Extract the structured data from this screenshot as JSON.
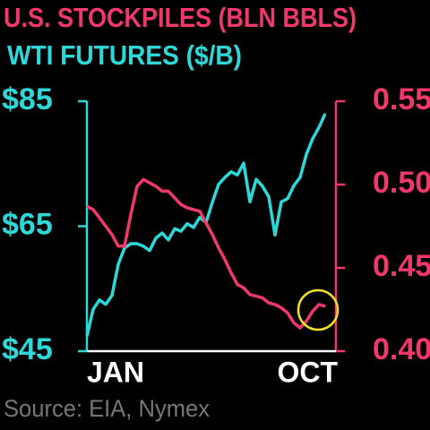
{
  "chart_data": {
    "type": "line",
    "title": "U.S. STOCKPILES (BLN BBLS)",
    "subtitle": "WTI FUTURES ($/B)",
    "source": "Source: EIA, Nymex",
    "categories": [
      "JAN",
      null,
      null,
      null,
      null,
      null,
      null,
      null,
      null,
      null,
      null,
      null,
      null,
      null,
      null,
      null,
      null,
      null,
      null,
      null,
      null,
      null,
      null,
      null,
      null,
      null,
      null,
      null,
      null,
      null,
      null,
      null,
      null,
      null,
      null,
      null,
      null,
      null,
      "OCT"
    ],
    "series": [
      {
        "name": "WTI FUTURES ($/B)",
        "color": "#2fd8d8",
        "axis": "y",
        "values": [
          47.4,
          51.7,
          53.2,
          52.5,
          53.9,
          58.9,
          61.5,
          62.2,
          62.2,
          61.8,
          61.1,
          63.1,
          63.9,
          62.8,
          64.6,
          64.2,
          65.4,
          64.8,
          66.4,
          65.6,
          68.8,
          71.7,
          72.8,
          73.7,
          73.2,
          75.1,
          68.9,
          72.5,
          71.4,
          69.7,
          63.6,
          68.9,
          69.4,
          71.5,
          72.8,
          76.5,
          79.0,
          80.8,
          83.0
        ]
      },
      {
        "name": "U.S. STOCKPILES (BLN BBLS)",
        "color": "#f0386b",
        "axis": "y2",
        "values": [
          0.487,
          0.485,
          0.48,
          0.475,
          0.47,
          0.463,
          0.463,
          0.482,
          0.499,
          0.503,
          0.501,
          0.499,
          0.496,
          0.496,
          0.492,
          0.488,
          0.486,
          0.485,
          0.484,
          0.477,
          0.47,
          0.462,
          0.455,
          0.447,
          0.44,
          0.438,
          0.434,
          0.433,
          0.432,
          0.429,
          0.428,
          0.426,
          0.423,
          0.417,
          0.414,
          0.418,
          0.424,
          0.428,
          0.427
        ]
      }
    ],
    "ylim": [
      45,
      85
    ],
    "yticks": [
      {
        "value": 45,
        "label": "$45"
      },
      {
        "value": 65,
        "label": "$65"
      },
      {
        "value": 85,
        "label": "$85"
      }
    ],
    "y2lim": [
      0.4,
      0.55
    ],
    "y2ticks": [
      {
        "value": 0.4,
        "label": "0.40"
      },
      0.45,
      {
        "value": 0.5,
        "label": "0.50"
      },
      0.55
    ]
  }
}
